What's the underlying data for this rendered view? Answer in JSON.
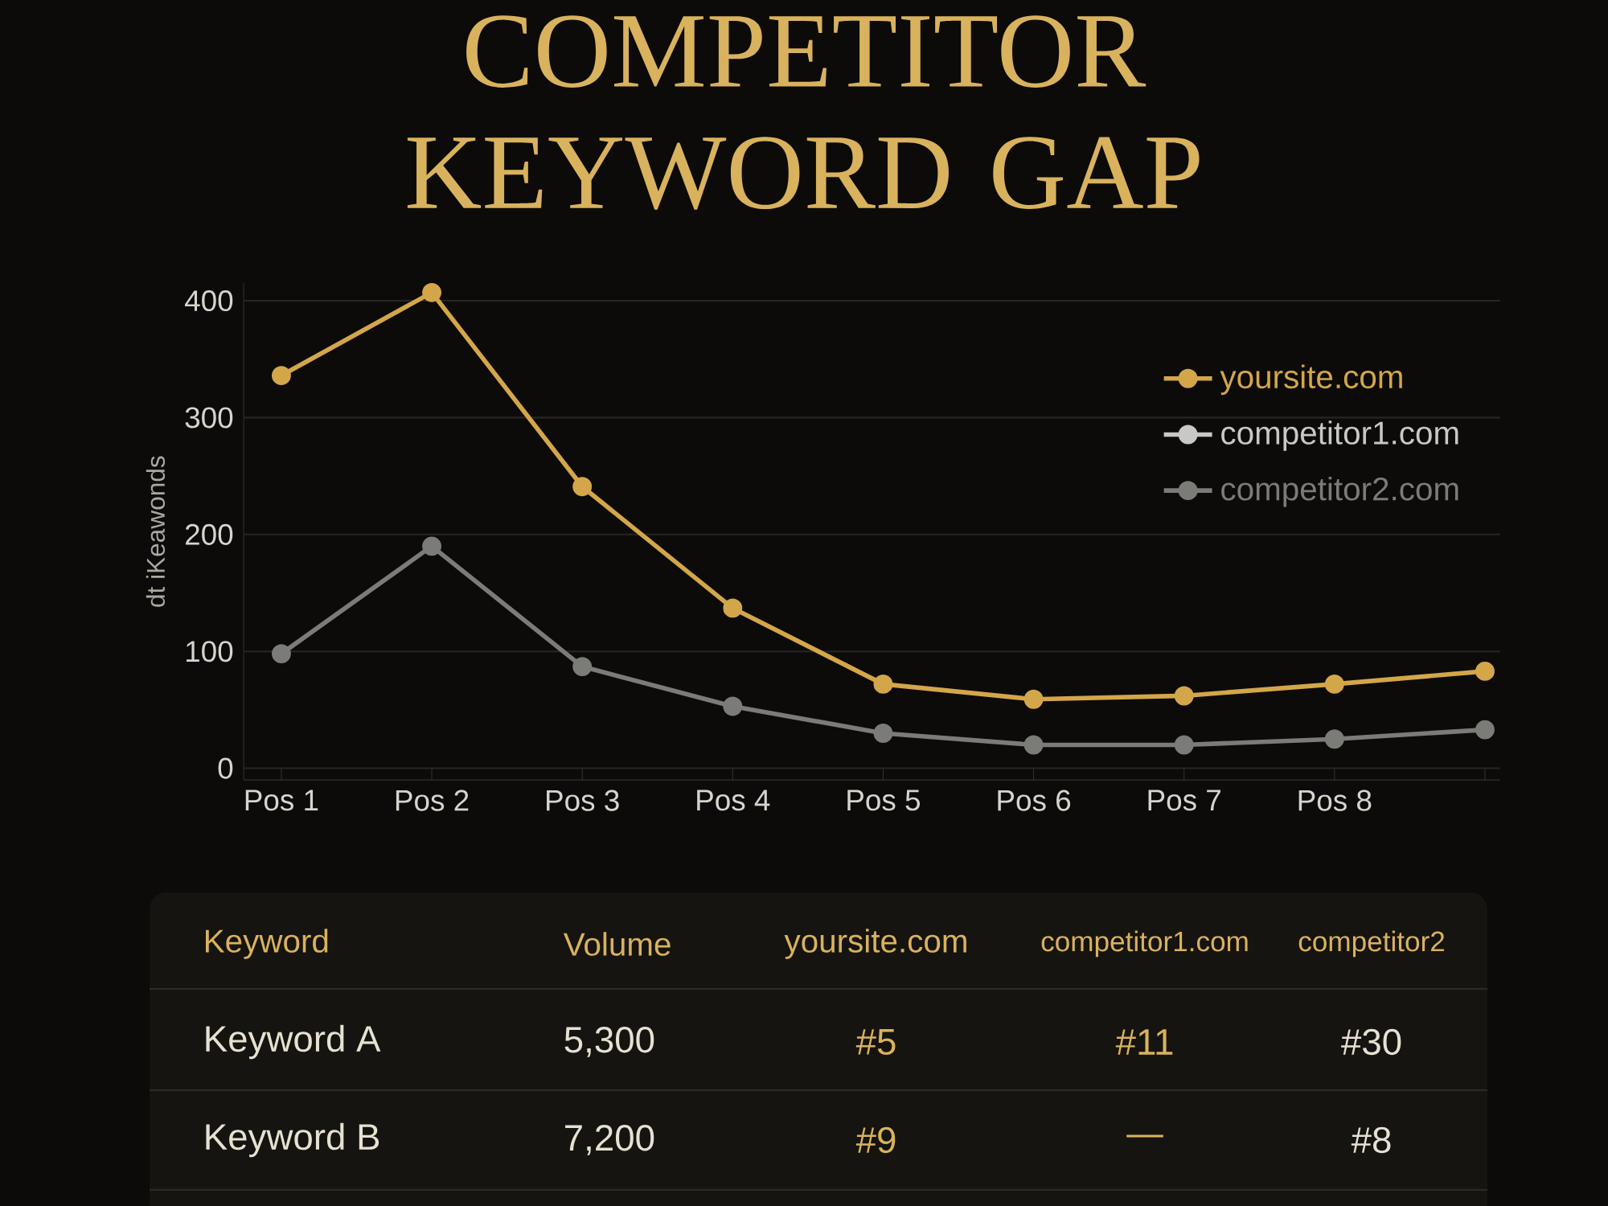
{
  "chart_data": [
    {
      "type": "line",
      "title": "COMPETITOR KEYWORD GAP",
      "ylabel": "dt iKeawonds",
      "categories": [
        "Pos 1",
        "Pos 2",
        "Pos 3",
        "Pos 4",
        "Pos 5",
        "Pos 6",
        "Pos 7",
        "Pos 8",
        null
      ],
      "series": [
        {
          "name": "yoursite.com",
          "color": "#d4a64a",
          "values": [
            336,
            407,
            241,
            137,
            72,
            59,
            62,
            72,
            83
          ]
        },
        {
          "name": "competitor1.com",
          "color": "#c8c8c6",
          "values": [
            null,
            null,
            null,
            null,
            null,
            null,
            null,
            null,
            null
          ]
        },
        {
          "name": "competitor2.com",
          "color": "#7b7b78",
          "values": [
            98,
            190,
            87,
            53,
            30,
            20,
            20,
            25,
            33
          ]
        }
      ],
      "ylim": [
        -10,
        415
      ],
      "yticks": [
        0,
        100,
        200,
        300,
        400
      ],
      "grid": "y",
      "legend": "top right",
      "marker": "circle"
    },
    {
      "type": "other",
      "annotations": [
        "Keyword",
        "Volume",
        "yoursite.com",
        "competitor1.com",
        "competitor2",
        "Keyword A",
        "5,300",
        "#5",
        "#11",
        "#30",
        "Keyword B",
        "7,200",
        "#9",
        "—",
        "#8"
      ]
    }
  ]
}
